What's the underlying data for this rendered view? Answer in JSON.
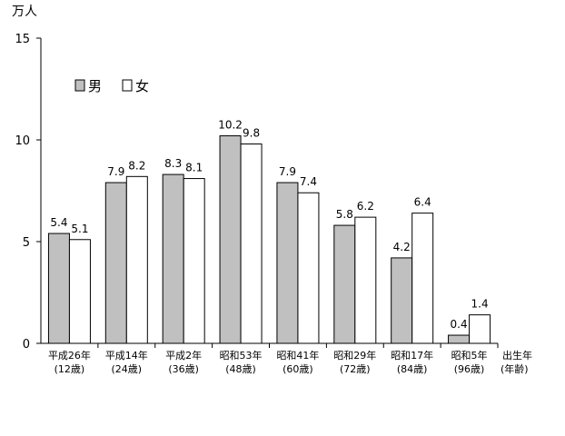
{
  "chart_data": {
    "type": "bar",
    "ylabel": "万人",
    "xlabel": [
      "出生年",
      "(年齢)"
    ],
    "ylim": [
      0,
      15
    ],
    "yticks": [
      0,
      5,
      10,
      15
    ],
    "grid": false,
    "legend_position": "top-left",
    "categories": [
      [
        "平成26年",
        "(12歳)"
      ],
      [
        "平成14年",
        "(24歳)"
      ],
      [
        "平成2年",
        "(36歳)"
      ],
      [
        "昭和53年",
        "(48歳)"
      ],
      [
        "昭和41年",
        "(60歳)"
      ],
      [
        "昭和29年",
        "(72歳)"
      ],
      [
        "昭和17年",
        "(84歳)"
      ],
      [
        "昭和5年",
        "(96歳)"
      ]
    ],
    "series": [
      {
        "name": "男",
        "color": "#c0c0c0",
        "values": [
          5.4,
          7.9,
          8.3,
          10.2,
          7.9,
          5.8,
          4.2,
          0.4
        ]
      },
      {
        "name": "女",
        "color": "#ffffff",
        "values": [
          5.1,
          8.2,
          8.1,
          9.8,
          7.4,
          6.2,
          6.4,
          1.4
        ]
      }
    ]
  }
}
